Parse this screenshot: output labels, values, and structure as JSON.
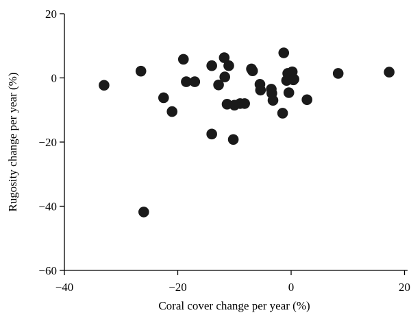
{
  "chart_data": {
    "type": "scatter",
    "title": "",
    "xlabel": "Coral cover change per year  (%)",
    "ylabel": "Rugosity change per year (%)",
    "xlim": [
      -40,
      20
    ],
    "ylim": [
      -60,
      20
    ],
    "xticks": [
      -40,
      -20,
      0,
      20
    ],
    "yticks": [
      -60,
      -40,
      -20,
      0,
      20
    ],
    "xtick_labels": [
      "−40",
      "−20",
      "0",
      "20"
    ],
    "ytick_labels": [
      "−60",
      "−40",
      "−20",
      "0",
      "20"
    ],
    "grid": false,
    "marker_color": "#1a1a1a",
    "series": [
      {
        "x": [
          -33,
          -26.5,
          -26,
          -22.5,
          -21,
          -19,
          -18.5,
          -17,
          -14,
          -14,
          -12.8,
          -11.8,
          -11.7,
          -11.3,
          -11,
          -10.2,
          -10,
          -9,
          -8.2,
          -7,
          -6.8,
          -5.5,
          -5.4,
          -3.5,
          -3.4,
          -3.2,
          -1.5,
          -1.3,
          -0.8,
          -0.6,
          -0.4,
          -0.3,
          0.2,
          0.4,
          0.5,
          2.8,
          8.3,
          17.3
        ],
        "y": [
          -2.3,
          2.1,
          -41.8,
          -6.2,
          -10.5,
          5.8,
          -1.2,
          -1.2,
          3.8,
          -17.5,
          -2.2,
          6.3,
          0.3,
          -8.2,
          3.8,
          -19.2,
          -8.5,
          -8,
          -8,
          2.8,
          2.2,
          -2,
          -3.8,
          -3.5,
          -4.8,
          -7,
          -11,
          7.8,
          -0.8,
          1.4,
          -4.6,
          1.1,
          1.9,
          -0.6,
          -0.4,
          -6.8,
          1.4,
          1.8
        ]
      }
    ]
  }
}
